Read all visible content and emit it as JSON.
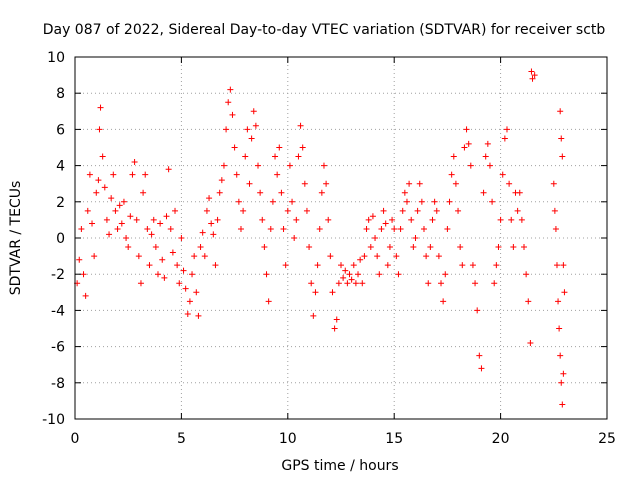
{
  "chart_data": {
    "type": "scatter",
    "title": "Day 087 of 2022, Sidereal Day-to-day VTEC variation (SDTVAR) for receiver sctb",
    "xlabel": "GPS time / hours",
    "ylabel": "SDTVAR / TECUs",
    "xlim": [
      0,
      25
    ],
    "ylim": [
      -10,
      10
    ],
    "xticks": [
      "0",
      "5",
      "10",
      "15",
      "20",
      "25"
    ],
    "yticks": [
      "-10",
      "-8",
      "-6",
      "-4",
      "-2",
      "0",
      "2",
      "4",
      "6",
      "8",
      "10"
    ],
    "grid": true,
    "marker": "+",
    "color": "#ff0000",
    "series": [
      {
        "name": "SDTVAR",
        "points": [
          [
            0.1,
            -2.5
          ],
          [
            0.2,
            -1.2
          ],
          [
            0.3,
            0.5
          ],
          [
            0.4,
            -2.0
          ],
          [
            0.5,
            -3.2
          ],
          [
            0.6,
            1.5
          ],
          [
            0.7,
            3.5
          ],
          [
            0.8,
            0.8
          ],
          [
            0.9,
            -1.0
          ],
          [
            1.0,
            2.5
          ],
          [
            1.1,
            3.2
          ],
          [
            1.15,
            6.0
          ],
          [
            1.2,
            7.2
          ],
          [
            1.3,
            4.5
          ],
          [
            1.4,
            2.8
          ],
          [
            1.5,
            1.0
          ],
          [
            1.6,
            0.2
          ],
          [
            1.7,
            2.2
          ],
          [
            1.8,
            3.5
          ],
          [
            1.9,
            1.5
          ],
          [
            2.0,
            0.5
          ],
          [
            2.1,
            1.8
          ],
          [
            2.2,
            0.8
          ],
          [
            2.3,
            2.0
          ],
          [
            2.4,
            0.0
          ],
          [
            2.5,
            -0.5
          ],
          [
            2.6,
            1.2
          ],
          [
            2.7,
            3.5
          ],
          [
            2.8,
            4.2
          ],
          [
            2.9,
            1.0
          ],
          [
            3.0,
            -1.0
          ],
          [
            3.1,
            -2.5
          ],
          [
            3.2,
            2.5
          ],
          [
            3.3,
            3.5
          ],
          [
            3.4,
            0.5
          ],
          [
            3.5,
            -1.5
          ],
          [
            3.6,
            0.2
          ],
          [
            3.7,
            1.0
          ],
          [
            3.8,
            -0.5
          ],
          [
            3.9,
            -2.0
          ],
          [
            4.0,
            0.8
          ],
          [
            4.1,
            -1.2
          ],
          [
            4.2,
            -2.2
          ],
          [
            4.3,
            1.2
          ],
          [
            4.4,
            3.8
          ],
          [
            4.5,
            0.5
          ],
          [
            4.6,
            -0.8
          ],
          [
            4.7,
            1.5
          ],
          [
            4.8,
            -1.5
          ],
          [
            4.9,
            -2.5
          ],
          [
            5.0,
            0.0
          ],
          [
            5.1,
            -1.8
          ],
          [
            5.2,
            -2.8
          ],
          [
            5.3,
            -4.2
          ],
          [
            5.4,
            -3.5
          ],
          [
            5.5,
            -2.0
          ],
          [
            5.6,
            -1.0
          ],
          [
            5.7,
            -3.0
          ],
          [
            5.8,
            -4.3
          ],
          [
            5.9,
            -0.5
          ],
          [
            6.0,
            0.3
          ],
          [
            6.1,
            -1.0
          ],
          [
            6.2,
            1.5
          ],
          [
            6.3,
            2.2
          ],
          [
            6.4,
            0.8
          ],
          [
            6.5,
            0.2
          ],
          [
            6.6,
            -1.5
          ],
          [
            6.7,
            1.0
          ],
          [
            6.8,
            2.5
          ],
          [
            6.9,
            3.2
          ],
          [
            7.0,
            4.0
          ],
          [
            7.1,
            6.0
          ],
          [
            7.2,
            7.5
          ],
          [
            7.3,
            8.2
          ],
          [
            7.4,
            6.8
          ],
          [
            7.5,
            5.0
          ],
          [
            7.6,
            3.5
          ],
          [
            7.7,
            2.0
          ],
          [
            7.8,
            0.5
          ],
          [
            7.9,
            1.5
          ],
          [
            8.0,
            4.5
          ],
          [
            8.1,
            6.0
          ],
          [
            8.2,
            3.0
          ],
          [
            8.3,
            5.5
          ],
          [
            8.4,
            7.0
          ],
          [
            8.5,
            6.2
          ],
          [
            8.6,
            4.0
          ],
          [
            8.7,
            2.5
          ],
          [
            8.8,
            1.0
          ],
          [
            8.9,
            -0.5
          ],
          [
            9.0,
            -2.0
          ],
          [
            9.1,
            -3.5
          ],
          [
            9.2,
            0.5
          ],
          [
            9.3,
            2.0
          ],
          [
            9.4,
            4.5
          ],
          [
            9.5,
            3.5
          ],
          [
            9.6,
            5.0
          ],
          [
            9.7,
            2.5
          ],
          [
            9.8,
            0.5
          ],
          [
            9.9,
            -1.5
          ],
          [
            10.0,
            1.5
          ],
          [
            10.1,
            4.0
          ],
          [
            10.2,
            2.0
          ],
          [
            10.3,
            0.0
          ],
          [
            10.4,
            1.0
          ],
          [
            10.5,
            4.5
          ],
          [
            10.6,
            6.2
          ],
          [
            10.7,
            5.0
          ],
          [
            10.8,
            3.0
          ],
          [
            10.9,
            1.5
          ],
          [
            11.0,
            -0.5
          ],
          [
            11.1,
            -2.5
          ],
          [
            11.2,
            -4.3
          ],
          [
            11.3,
            -3.0
          ],
          [
            11.4,
            -1.5
          ],
          [
            11.5,
            0.5
          ],
          [
            11.6,
            2.5
          ],
          [
            11.7,
            4.0
          ],
          [
            11.8,
            3.0
          ],
          [
            11.9,
            1.0
          ],
          [
            12.0,
            -1.0
          ],
          [
            12.1,
            -3.0
          ],
          [
            12.2,
            -5.0
          ],
          [
            12.3,
            -4.5
          ],
          [
            12.4,
            -2.5
          ],
          [
            12.5,
            -1.5
          ],
          [
            12.6,
            -2.2
          ],
          [
            12.7,
            -1.8
          ],
          [
            12.8,
            -2.5
          ],
          [
            12.9,
            -2.0
          ],
          [
            13.0,
            -2.3
          ],
          [
            13.1,
            -1.5
          ],
          [
            13.2,
            -2.5
          ],
          [
            13.3,
            -2.0
          ],
          [
            13.4,
            -1.2
          ],
          [
            13.5,
            -2.5
          ],
          [
            13.6,
            -1.0
          ],
          [
            13.7,
            0.5
          ],
          [
            13.8,
            1.0
          ],
          [
            13.9,
            -0.5
          ],
          [
            14.0,
            1.2
          ],
          [
            14.1,
            0.0
          ],
          [
            14.2,
            -1.0
          ],
          [
            14.3,
            -2.0
          ],
          [
            14.4,
            0.5
          ],
          [
            14.5,
            1.5
          ],
          [
            14.6,
            0.8
          ],
          [
            14.7,
            -1.5
          ],
          [
            14.8,
            -0.5
          ],
          [
            14.9,
            1.0
          ],
          [
            15.0,
            0.5
          ],
          [
            15.1,
            -1.0
          ],
          [
            15.2,
            -2.0
          ],
          [
            15.3,
            0.5
          ],
          [
            15.4,
            1.5
          ],
          [
            15.5,
            2.5
          ],
          [
            15.6,
            2.0
          ],
          [
            15.7,
            3.0
          ],
          [
            15.8,
            1.0
          ],
          [
            15.9,
            -0.5
          ],
          [
            16.0,
            0.0
          ],
          [
            16.1,
            1.5
          ],
          [
            16.2,
            3.0
          ],
          [
            16.3,
            2.0
          ],
          [
            16.4,
            0.5
          ],
          [
            16.5,
            -1.0
          ],
          [
            16.6,
            -2.5
          ],
          [
            16.7,
            -0.5
          ],
          [
            16.8,
            1.0
          ],
          [
            16.9,
            2.0
          ],
          [
            17.0,
            1.5
          ],
          [
            17.1,
            -1.0
          ],
          [
            17.2,
            -2.5
          ],
          [
            17.3,
            -3.5
          ],
          [
            17.4,
            -2.0
          ],
          [
            17.5,
            0.5
          ],
          [
            17.6,
            2.0
          ],
          [
            17.7,
            3.5
          ],
          [
            17.8,
            4.5
          ],
          [
            17.9,
            3.0
          ],
          [
            18.0,
            1.5
          ],
          [
            18.1,
            -0.5
          ],
          [
            18.2,
            -1.5
          ],
          [
            18.3,
            5.0
          ],
          [
            18.4,
            6.0
          ],
          [
            18.5,
            5.2
          ],
          [
            18.6,
            4.0
          ],
          [
            18.7,
            -1.5
          ],
          [
            18.8,
            -2.5
          ],
          [
            18.9,
            -4.0
          ],
          [
            19.0,
            -6.5
          ],
          [
            19.1,
            -7.2
          ],
          [
            19.2,
            2.5
          ],
          [
            19.3,
            4.5
          ],
          [
            19.4,
            5.2
          ],
          [
            19.5,
            4.0
          ],
          [
            19.6,
            2.0
          ],
          [
            19.7,
            -2.5
          ],
          [
            19.8,
            -1.5
          ],
          [
            19.9,
            -0.5
          ],
          [
            20.0,
            1.0
          ],
          [
            20.1,
            3.5
          ],
          [
            20.2,
            5.5
          ],
          [
            20.3,
            6.0
          ],
          [
            20.4,
            3.0
          ],
          [
            20.5,
            1.0
          ],
          [
            20.6,
            -0.5
          ],
          [
            20.7,
            2.5
          ],
          [
            20.8,
            1.5
          ],
          [
            20.9,
            2.5
          ],
          [
            21.0,
            1.0
          ],
          [
            21.1,
            -0.5
          ],
          [
            21.2,
            -2.0
          ],
          [
            21.3,
            -3.5
          ],
          [
            21.4,
            -5.8
          ],
          [
            21.45,
            9.2
          ],
          [
            21.5,
            8.8
          ],
          [
            21.6,
            9.0
          ],
          [
            22.5,
            3.0
          ],
          [
            22.55,
            1.5
          ],
          [
            22.6,
            0.5
          ],
          [
            22.65,
            -1.5
          ],
          [
            22.7,
            -3.5
          ],
          [
            22.75,
            -5.0
          ],
          [
            22.8,
            -6.5
          ],
          [
            22.85,
            -8.0
          ],
          [
            22.9,
            -9.2
          ],
          [
            22.95,
            -7.5
          ],
          [
            22.8,
            7.0
          ],
          [
            22.85,
            5.5
          ],
          [
            22.9,
            4.5
          ],
          [
            22.95,
            -1.5
          ],
          [
            23.0,
            -3.0
          ]
        ]
      }
    ]
  }
}
